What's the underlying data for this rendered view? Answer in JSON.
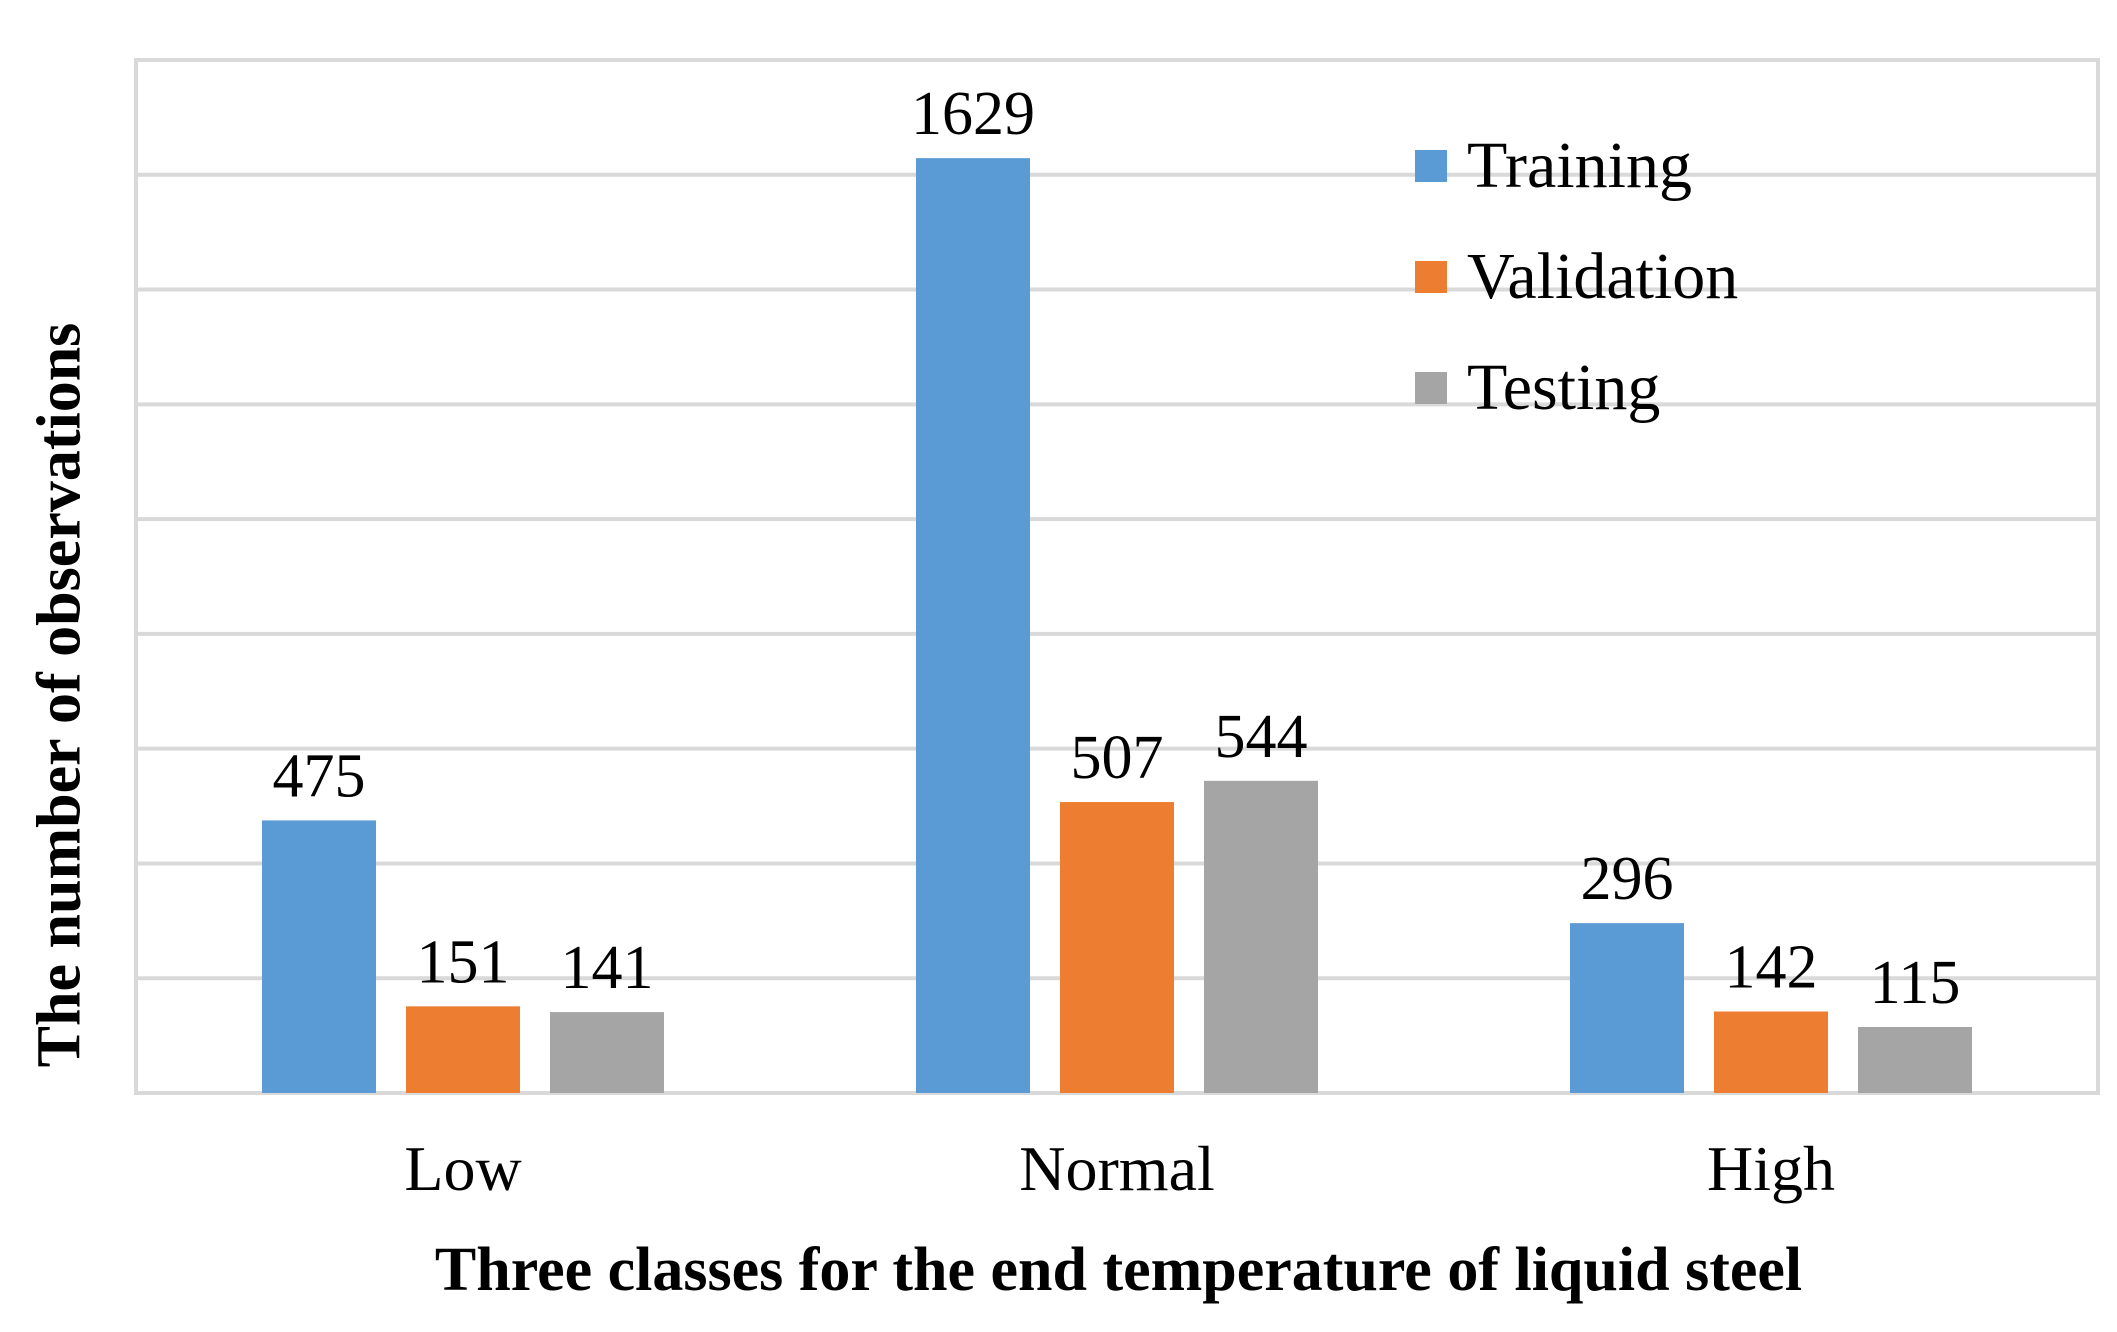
{
  "chart_data": {
    "type": "bar",
    "categories": [
      "Low",
      "Normal",
      "High"
    ],
    "series": [
      {
        "name": "Training",
        "color": "#5B9BD5",
        "values": [
          475,
          1629,
          296
        ]
      },
      {
        "name": "Validation",
        "color": "#ED7D31",
        "values": [
          151,
          507,
          142
        ]
      },
      {
        "name": "Testing",
        "color": "#A5A5A5",
        "values": [
          141,
          544,
          115
        ]
      }
    ],
    "data_labels": true,
    "xlabel": "Three classes for the end temperature of liquid steel",
    "ylabel": "The number of observations",
    "ylim": [
      0,
      1800
    ],
    "y_gridline_step": 200,
    "y_tick_labels_shown": false,
    "grid": true,
    "legend_position": "top-right"
  }
}
